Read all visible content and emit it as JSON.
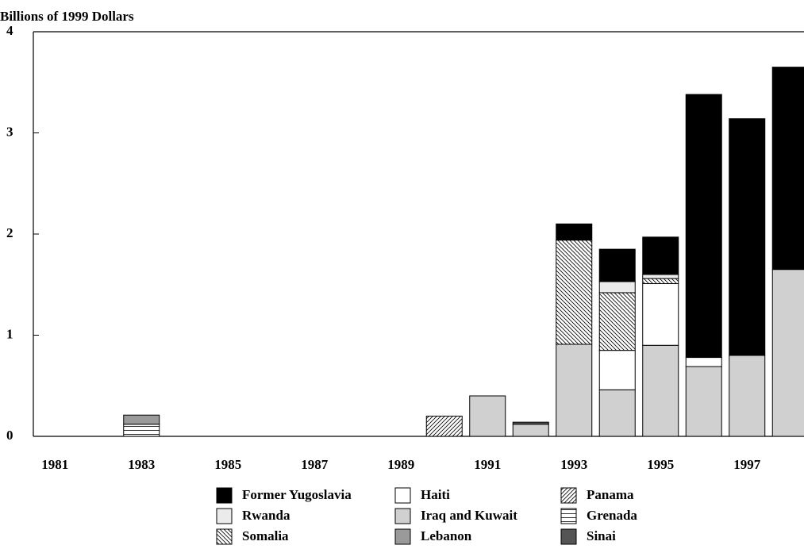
{
  "chart_data": {
    "type": "stacked-bar",
    "y_label": "Billions of 1999 Dollars",
    "categories": [
      "1981",
      null,
      "1983",
      null,
      "1985",
      null,
      "1987",
      null,
      "1989",
      null,
      "1991",
      null,
      "1993",
      null,
      "1995",
      null,
      "1997",
      null
    ],
    "ylim": [
      0,
      4
    ],
    "yticks": [
      0,
      1,
      2,
      3,
      4
    ],
    "series": [
      {
        "name": "Former Yugoslavia",
        "color": "#000000",
        "values": [
          null,
          null,
          null,
          null,
          null,
          null,
          null,
          null,
          null,
          null,
          null,
          null,
          0.16,
          0.32,
          0.37,
          2.6,
          2.34,
          2.0
        ]
      },
      {
        "name": "Haiti",
        "color": "#ffffff",
        "values": [
          null,
          null,
          null,
          null,
          null,
          null,
          null,
          null,
          null,
          null,
          null,
          null,
          null,
          0.39,
          0.61,
          0.09,
          null,
          null
        ]
      },
      {
        "name": "Panama",
        "color": "#ffffff",
        "hatch": "diagonal",
        "values": [
          null,
          null,
          null,
          null,
          null,
          null,
          null,
          null,
          null,
          0.2,
          null,
          null,
          null,
          null,
          null,
          null,
          null,
          null
        ]
      },
      {
        "name": "Rwanda",
        "color": "#ebebeb",
        "values": [
          null,
          null,
          null,
          null,
          null,
          null,
          null,
          null,
          null,
          null,
          null,
          null,
          null,
          0.11,
          0.04,
          null,
          null,
          null
        ]
      },
      {
        "name": "Iraq and Kuwait",
        "color": "#d0d0d0",
        "values": [
          null,
          null,
          null,
          null,
          null,
          null,
          null,
          null,
          null,
          null,
          0.4,
          0.12,
          0.91,
          0.46,
          0.9,
          0.69,
          0.8,
          1.65
        ]
      },
      {
        "name": "Grenada",
        "color": "#ffffff",
        "hatch": "horizontal",
        "values": [
          null,
          null,
          0.12,
          null,
          null,
          null,
          null,
          null,
          null,
          null,
          null,
          null,
          null,
          null,
          null,
          null,
          null,
          null
        ]
      },
      {
        "name": "Somalia",
        "color": "#ffffff",
        "hatch": "back-diagonal",
        "values": [
          null,
          null,
          null,
          null,
          null,
          null,
          null,
          null,
          null,
          null,
          null,
          null,
          1.03,
          0.57,
          0.05,
          null,
          null,
          null
        ]
      },
      {
        "name": "Lebanon",
        "color": "#9a9a9a",
        "values": [
          null,
          null,
          0.09,
          null,
          null,
          null,
          null,
          null,
          null,
          null,
          null,
          null,
          null,
          null,
          null,
          null,
          null,
          null
        ]
      },
      {
        "name": "Sinai",
        "color": "#555555",
        "values": [
          null,
          null,
          null,
          null,
          null,
          null,
          null,
          null,
          null,
          null,
          null,
          0.02,
          null,
          null,
          null,
          null,
          null,
          null
        ]
      }
    ]
  }
}
